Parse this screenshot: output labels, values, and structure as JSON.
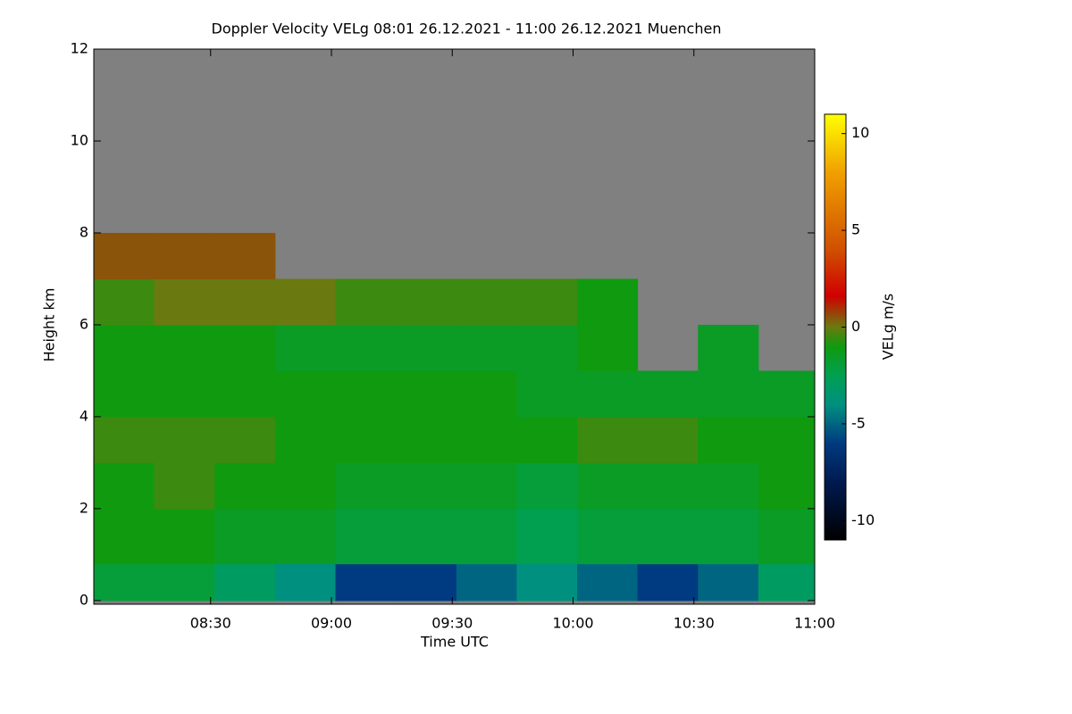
{
  "chart_data": {
    "type": "heatmap",
    "title": "Doppler Velocity VELg   08:01 26.12.2021 - 11:00 26.12.2021 Muenchen",
    "x_label": "Time UTC",
    "y_label": "Height km",
    "colorbar_label": "VELg m/s",
    "xlim": [
      "08:01",
      "11:00"
    ],
    "xticks": [
      "08:30",
      "09:00",
      "09:30",
      "10:00",
      "10:30",
      "11:00"
    ],
    "ylim": [
      -0.08,
      12.0
    ],
    "yticks": [
      0,
      2,
      4,
      6,
      8,
      10,
      12
    ],
    "xbins": [
      "08:01",
      "08:16",
      "08:31",
      "08:46",
      "09:01",
      "09:16",
      "09:31",
      "09:46",
      "10:01",
      "10:16",
      "10:31",
      "10:46",
      "11:00"
    ],
    "ybins": [
      0,
      0.8,
      2,
      3,
      4,
      5,
      6,
      7,
      8,
      12
    ],
    "z": [
      [
        -2,
        -2,
        -3,
        -4,
        -6,
        -6,
        -5,
        -4,
        -5,
        -6,
        -5,
        -3
      ],
      [
        -1,
        -1,
        -1.5,
        -1.5,
        -2,
        -2,
        -2,
        -2.5,
        -2,
        -2,
        -2,
        -1.5
      ],
      [
        -1,
        -0.5,
        -1,
        -1,
        -1.5,
        -1.5,
        -1.5,
        -2,
        -1.5,
        -1.5,
        -1.5,
        -1
      ],
      [
        -0.5,
        -0.5,
        -0.5,
        -1,
        -1,
        -1,
        -1,
        -1,
        -0.5,
        -0.5,
        -1,
        -1
      ],
      [
        -1,
        -1,
        -1,
        -1,
        -1,
        -1,
        -1,
        -1.5,
        -1.5,
        -1.5,
        -1.5,
        -1.5
      ],
      [
        -1,
        -1,
        -1,
        -1.5,
        -1.5,
        -1.5,
        -1.5,
        -1.5,
        -1,
        null,
        -1.5,
        null
      ],
      [
        -0.5,
        0,
        0,
        0,
        -0.5,
        -0.5,
        -0.5,
        -0.5,
        -1,
        null,
        null,
        null
      ],
      [
        0.5,
        0.5,
        0.5,
        null,
        null,
        null,
        null,
        null,
        null,
        null,
        null,
        null
      ],
      [
        null,
        null,
        null,
        null,
        null,
        null,
        null,
        null,
        null,
        null,
        null,
        null
      ]
    ],
    "zlim": [
      -11,
      11
    ],
    "zticks": [
      -10,
      -5,
      0,
      5,
      10
    ],
    "nan_color": "#808080",
    "colormap": [
      [
        -11,
        "#000000"
      ],
      [
        -8,
        "#001a50"
      ],
      [
        -6,
        "#003a80"
      ],
      [
        -4,
        "#009080"
      ],
      [
        -2.5,
        "#00a050"
      ],
      [
        -1,
        "#109a10"
      ],
      [
        0,
        "#6a7a10"
      ],
      [
        1.6,
        "#d00000"
      ],
      [
        4,
        "#d05000"
      ],
      [
        8,
        "#f0a000"
      ],
      [
        11,
        "#ffff00"
      ]
    ]
  }
}
